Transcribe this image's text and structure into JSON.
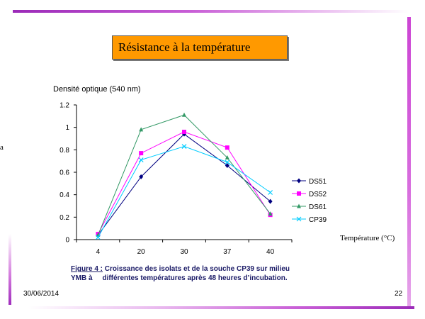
{
  "slide": {
    "title": "Résistance à la température",
    "left_glyph": "a",
    "date": "30/06/2014",
    "page_number": "22",
    "caption": {
      "label": "Figure 4 :",
      "line1_rest": " Croissance des isolats et de la souche CP39 sur milieu",
      "line2": "YMB à     différentes températures après 48 heures d’incubation."
    }
  },
  "colors": {
    "title_box": "#ff9900",
    "DS51": "#000080",
    "DS52": "#ff00ff",
    "DS61": "#339966",
    "CP39": "#00ccff"
  },
  "chart_data": {
    "type": "line",
    "ylabel": "Densité optique (540 nm)",
    "xlabel": "Température (°C)",
    "categories": [
      "4",
      "20",
      "30",
      "37",
      "40"
    ],
    "ylim": [
      0,
      1.2
    ],
    "yticks": [
      "0",
      "0.2",
      "0.4",
      "0.6",
      "0.8",
      "1",
      "1.2"
    ],
    "grid": false,
    "legend_position": "right",
    "series": [
      {
        "name": "DS51",
        "marker": "diamond",
        "values": [
          0.04,
          0.56,
          0.94,
          0.66,
          0.34
        ]
      },
      {
        "name": "DS52",
        "marker": "square",
        "values": [
          0.05,
          0.77,
          0.96,
          0.82,
          0.22
        ]
      },
      {
        "name": "DS61",
        "marker": "triangle",
        "values": [
          0.04,
          0.98,
          1.11,
          0.73,
          0.23
        ]
      },
      {
        "name": "CP39",
        "marker": "x",
        "values": [
          0.02,
          0.71,
          0.83,
          0.69,
          0.42
        ]
      }
    ]
  }
}
